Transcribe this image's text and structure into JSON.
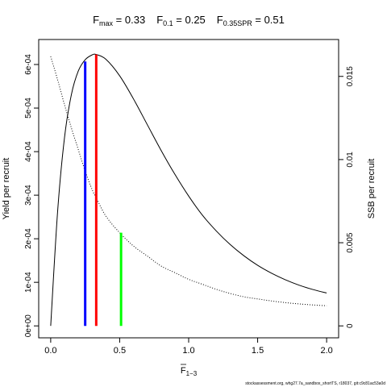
{
  "chart_data": {
    "type": "line",
    "title": {
      "parts": [
        {
          "base": "F",
          "sub": "max",
          "eq": " = 0.33"
        },
        {
          "base": "F",
          "sub": "0.1",
          "eq": " = 0.25"
        },
        {
          "base": "F",
          "sub": "0.35SPR",
          "eq": " = 0.51"
        }
      ]
    },
    "xlabel": {
      "base": "F",
      "sub": "1−3",
      "overline": true
    },
    "ylabel_left": "Yield per recruit",
    "ylabel_right": "SSB per recruit",
    "xlim": [
      0,
      2.0
    ],
    "ylim_left": [
      0,
      0.00063
    ],
    "ylim_right": [
      0,
      0.0165
    ],
    "x_ticks": [
      0,
      0.5,
      1.0,
      1.5,
      2.0
    ],
    "x_tick_labels": [
      "0.0",
      "0.5",
      "1.0",
      "1.5",
      "2.0"
    ],
    "y_left_ticks": [
      0,
      0.0001,
      0.0002,
      0.0003,
      0.0004,
      0.0005,
      0.0006
    ],
    "y_left_tick_labels": [
      "0e+00",
      "1e-04",
      "2e-04",
      "3e-04",
      "4e-04",
      "5e-04",
      "6e-04"
    ],
    "y_right_ticks": [
      0,
      0.005,
      0.01,
      0.015
    ],
    "y_right_tick_labels": [
      "0",
      "0.005",
      "0.01",
      "0.015"
    ],
    "grid": false,
    "series": [
      {
        "axis": "left",
        "style": "solid",
        "color": "#000000",
        "x": [
          0,
          0.05,
          0.1,
          0.15,
          0.2,
          0.25,
          0.3,
          0.33,
          0.4,
          0.5,
          0.6,
          0.7,
          0.8,
          0.9,
          1.0,
          1.1,
          1.2,
          1.3,
          1.4,
          1.5,
          1.6,
          1.7,
          1.8,
          1.9,
          2.0
        ],
        "values": [
          0.0,
          0.000262,
          0.000432,
          0.000531,
          0.000585,
          0.000611,
          0.000622,
          0.000623,
          0.000612,
          0.000574,
          0.000521,
          0.000462,
          0.000403,
          0.000348,
          0.000298,
          0.000254,
          0.000218,
          0.000187,
          0.000161,
          0.000139,
          0.000121,
          0.000106,
          9.35e-05,
          8.35e-05,
          7.55e-05
        ]
      },
      {
        "axis": "right",
        "style": "dotted",
        "color": "#000000",
        "x": [
          0,
          0.05,
          0.1,
          0.15,
          0.2,
          0.25,
          0.3,
          0.33,
          0.4,
          0.5,
          0.6,
          0.7,
          0.8,
          0.9,
          1.0,
          1.1,
          1.2,
          1.3,
          1.4,
          1.5,
          1.6,
          1.7,
          1.8,
          1.9,
          2.0
        ],
        "values": [
          0.0162,
          0.0148,
          0.0133,
          0.0119,
          0.0106,
          0.0093,
          0.0082,
          0.0077,
          0.0066,
          0.0056,
          0.0048,
          0.0042,
          0.0036,
          0.0032,
          0.0028,
          0.0025,
          0.0022,
          0.00195,
          0.00175,
          0.00162,
          0.0015,
          0.0014,
          0.00132,
          0.00126,
          0.00121
        ]
      }
    ],
    "reference_lines": [
      {
        "x": 0.25,
        "color": "#0000ff",
        "axis": "left",
        "y": 0.000607
      },
      {
        "x": 0.33,
        "color": "#ff0000",
        "axis": "left",
        "y": 0.000623
      },
      {
        "x": 0.51,
        "color": "#00ff00",
        "axis": "right",
        "y": 0.0056
      }
    ],
    "footer": "stockassessment.org, whg27.7a_sandbox_shortTS, r18037, git:c9c81ac53a0d"
  }
}
